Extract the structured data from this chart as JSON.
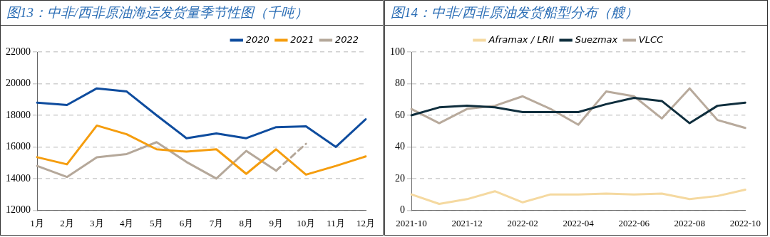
{
  "chart_data": [
    {
      "type": "line",
      "title": "图13：中非/西非原油海运发货量季节性图（千吨）",
      "categories": [
        "1月",
        "2月",
        "3月",
        "4月",
        "5月",
        "6月",
        "7月",
        "8月",
        "9月",
        "10月",
        "11月",
        "12月"
      ],
      "series": [
        {
          "name": "2020",
          "color": "#0e4c9e",
          "values": [
            18800,
            18650,
            19700,
            19500,
            18000,
            16550,
            16850,
            16550,
            17250,
            17300,
            16000,
            17750
          ]
        },
        {
          "name": "2021",
          "color": "#f59d0e",
          "values": [
            15350,
            14900,
            17350,
            16800,
            15850,
            15700,
            15850,
            14300,
            15850,
            14250,
            14800,
            15400
          ]
        },
        {
          "name": "2022",
          "color": "#b5a89a",
          "values": [
            14800,
            14100,
            15350,
            15550,
            16300,
            15050,
            14000,
            15750,
            14500,
            null,
            null,
            null
          ]
        },
        {
          "color": "#b5a89a",
          "line_style": "dashed",
          "values": [
            null,
            null,
            null,
            null,
            null,
            null,
            null,
            null,
            14500,
            16200,
            null,
            null
          ]
        }
      ],
      "ylim": [
        12000,
        22000
      ],
      "yticks": [
        12000,
        14000,
        16000,
        18000,
        20000,
        22000
      ],
      "grid": "y",
      "legend": "top right",
      "marker": "none",
      "line_style": "solid"
    },
    {
      "type": "line",
      "title": "图14：中非/西非原油发货船型分布（艘）",
      "categories": [
        "2021-10",
        null,
        "2021-12",
        null,
        "2022-02",
        null,
        "2022-04",
        null,
        "2022-06",
        null,
        "2022-08",
        null,
        "2022-10"
      ],
      "series": [
        {
          "name": "Aframax / LRII",
          "color": "#f5d9a0",
          "values": [
            10,
            4,
            7,
            12,
            5,
            10,
            10,
            10.5,
            10,
            10.5,
            7,
            9,
            13
          ]
        },
        {
          "name": "Suezmax",
          "color": "#0f2e3d",
          "values": [
            60,
            65,
            66,
            65,
            62,
            62,
            62,
            67,
            71,
            69,
            55,
            66,
            68
          ]
        },
        {
          "name": "VLCC",
          "color": "#b8aa9c",
          "values": [
            64,
            55,
            64,
            66,
            72,
            64,
            54,
            75,
            72,
            58,
            77,
            57,
            52
          ]
        }
      ],
      "ylim": [
        0,
        100
      ],
      "yticks": [
        0,
        20,
        40,
        60,
        80,
        100
      ],
      "grid": "y",
      "legend": "top",
      "marker": "none",
      "line_style": "solid"
    }
  ]
}
